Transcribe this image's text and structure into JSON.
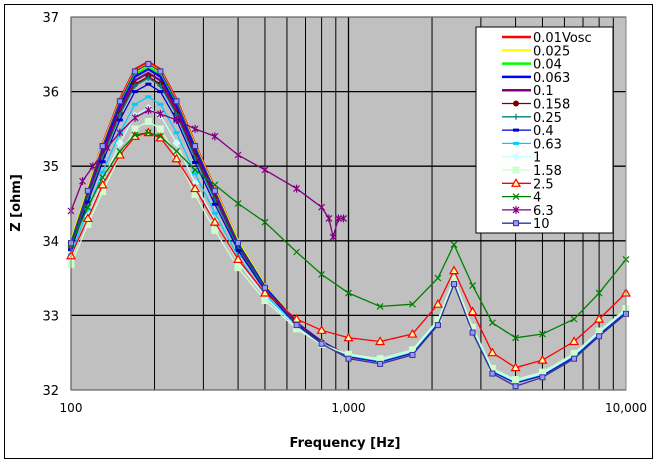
{
  "chart_data": {
    "type": "line",
    "title": "",
    "xlabel": "Frequency [Hz]",
    "ylabel": "Z [ohm]",
    "xscale": "log",
    "xlim": [
      100,
      10000
    ],
    "ylim": [
      32,
      37
    ],
    "grid": true,
    "legend_position": "top-right",
    "x_ticks": [
      {
        "v": 100,
        "label": "100"
      },
      {
        "v": 1000,
        "label": "1,000"
      },
      {
        "v": 10000,
        "label": "10,000"
      }
    ],
    "y_ticks": [
      {
        "v": 32,
        "label": "32"
      },
      {
        "v": 33,
        "label": "33"
      },
      {
        "v": 34,
        "label": "34"
      },
      {
        "v": 35,
        "label": "35"
      },
      {
        "v": 36,
        "label": "36"
      },
      {
        "v": 37,
        "label": "37"
      }
    ],
    "x": [
      100,
      115,
      130,
      150,
      170,
      190,
      210,
      240,
      280,
      330,
      400,
      500,
      650,
      800,
      1000,
      1300,
      1700,
      2100,
      2400,
      2800,
      3300,
      4000,
      5000,
      6500,
      8000,
      10000
    ],
    "series": [
      {
        "name": "0.01Vosc",
        "color": "#FF0000",
        "marker": "none",
        "values": [
          34.0,
          34.7,
          35.3,
          35.9,
          36.3,
          36.4,
          36.3,
          35.9,
          35.3,
          34.7,
          34.0,
          33.4,
          32.9,
          32.65,
          32.45,
          32.38,
          32.5,
          32.9,
          33.45,
          32.8,
          32.25,
          32.1,
          32.2,
          32.45,
          32.75,
          33.05
        ]
      },
      {
        "name": "0.025",
        "color": "#FFFF00",
        "marker": "none",
        "values": [
          34.0,
          34.7,
          35.28,
          35.87,
          36.27,
          36.37,
          36.27,
          35.87,
          35.28,
          34.68,
          34.0,
          33.4,
          32.9,
          32.65,
          32.45,
          32.38,
          32.5,
          32.9,
          33.45,
          32.8,
          32.25,
          32.1,
          32.2,
          32.45,
          32.75,
          33.05
        ]
      },
      {
        "name": "0.04",
        "color": "#00FF00",
        "marker": "none",
        "values": [
          33.97,
          34.66,
          35.24,
          35.83,
          36.23,
          36.33,
          36.23,
          35.83,
          35.24,
          34.65,
          33.97,
          33.38,
          32.9,
          32.65,
          32.45,
          32.38,
          32.5,
          32.9,
          33.45,
          32.8,
          32.25,
          32.1,
          32.2,
          32.45,
          32.75,
          33.05
        ]
      },
      {
        "name": "0.063",
        "color": "#0000FF",
        "marker": "none",
        "values": [
          33.96,
          34.64,
          35.22,
          35.8,
          36.2,
          36.3,
          36.2,
          35.8,
          35.22,
          34.63,
          33.96,
          33.38,
          32.9,
          32.65,
          32.45,
          32.38,
          32.5,
          32.9,
          33.45,
          32.8,
          32.25,
          32.1,
          32.2,
          32.45,
          32.75,
          33.05
        ]
      },
      {
        "name": "0.1",
        "color": "#800080",
        "marker": "none",
        "values": [
          33.94,
          34.61,
          35.18,
          35.76,
          36.15,
          36.25,
          36.15,
          35.76,
          35.17,
          34.6,
          33.93,
          33.36,
          32.89,
          32.65,
          32.45,
          32.38,
          32.5,
          32.9,
          33.45,
          32.8,
          32.25,
          32.1,
          32.2,
          32.45,
          32.75,
          33.05
        ]
      },
      {
        "name": "0.158",
        "color": "#800000",
        "marker": "circle",
        "values": [
          33.92,
          34.58,
          35.14,
          35.71,
          36.1,
          36.2,
          36.1,
          35.71,
          35.13,
          34.56,
          33.91,
          33.35,
          32.88,
          32.64,
          32.45,
          32.38,
          32.5,
          32.9,
          33.45,
          32.8,
          32.25,
          32.1,
          32.2,
          32.45,
          32.75,
          33.05
        ]
      },
      {
        "name": "0.25",
        "color": "#008080",
        "marker": "plus",
        "values": [
          33.91,
          34.57,
          35.12,
          35.69,
          36.08,
          36.18,
          36.08,
          35.69,
          35.11,
          34.55,
          33.9,
          33.35,
          32.88,
          32.64,
          32.45,
          32.38,
          32.5,
          32.9,
          33.45,
          32.8,
          32.25,
          32.1,
          32.2,
          32.45,
          32.75,
          33.05
        ]
      },
      {
        "name": "0.4",
        "color": "#0000CC",
        "marker": "dash",
        "values": [
          33.88,
          34.52,
          35.06,
          35.62,
          36.0,
          36.1,
          36.0,
          35.62,
          35.05,
          34.49,
          33.87,
          33.33,
          32.87,
          32.64,
          32.45,
          32.38,
          32.5,
          32.9,
          33.45,
          32.8,
          32.25,
          32.1,
          32.2,
          32.45,
          32.75,
          33.05
        ]
      },
      {
        "name": "0.63",
        "color": "#00CCFF",
        "marker": "dash",
        "values": [
          33.81,
          34.42,
          34.92,
          35.45,
          35.83,
          35.93,
          35.83,
          35.45,
          34.9,
          34.37,
          33.79,
          33.28,
          32.85,
          32.63,
          32.46,
          32.39,
          32.51,
          32.91,
          33.46,
          32.81,
          32.26,
          32.11,
          32.21,
          32.46,
          32.76,
          33.06
        ]
      },
      {
        "name": "1",
        "color": "#CCFFFF",
        "marker": "diamond",
        "values": [
          33.75,
          34.33,
          34.8,
          35.31,
          35.68,
          35.78,
          35.68,
          35.31,
          34.77,
          34.27,
          33.72,
          33.25,
          32.84,
          32.62,
          32.47,
          32.4,
          32.52,
          32.92,
          33.47,
          32.82,
          32.27,
          32.12,
          32.22,
          32.47,
          32.77,
          33.07
        ]
      },
      {
        "name": "1.58",
        "color": "#CCFFCC",
        "marker": "square",
        "values": [
          33.68,
          34.22,
          34.66,
          35.14,
          35.5,
          35.6,
          35.5,
          35.14,
          34.62,
          34.14,
          33.64,
          33.2,
          32.82,
          32.61,
          32.48,
          32.42,
          32.54,
          32.94,
          33.49,
          32.84,
          32.29,
          32.14,
          32.24,
          32.49,
          32.79,
          33.09
        ]
      },
      {
        "name": "2.5",
        "color": "#FF0000",
        "marker": "triangle",
        "values": [
          33.8,
          34.3,
          34.75,
          35.15,
          35.4,
          35.45,
          35.38,
          35.1,
          34.7,
          34.25,
          33.75,
          33.3,
          32.95,
          32.8,
          32.7,
          32.65,
          32.75,
          33.15,
          33.6,
          33.05,
          32.5,
          32.3,
          32.4,
          32.65,
          32.95,
          33.3
        ]
      },
      {
        "name": "4",
        "color": "#008000",
        "marker": "x",
        "values": [
          33.95,
          34.45,
          34.85,
          35.2,
          35.42,
          35.45,
          35.4,
          35.2,
          34.95,
          34.75,
          34.5,
          34.25,
          33.85,
          33.55,
          33.3,
          33.12,
          33.15,
          33.5,
          33.95,
          33.4,
          32.9,
          32.7,
          32.75,
          32.95,
          33.3,
          33.75
        ]
      },
      {
        "name": "6.3",
        "color": "#800080",
        "marker": "star",
        "x": [
          100,
          110,
          120,
          135,
          150,
          170,
          190,
          210,
          240,
          280,
          330,
          400,
          500,
          650,
          800,
          850,
          880,
          920,
          960
        ],
        "values": [
          34.4,
          34.8,
          35.0,
          35.25,
          35.45,
          35.65,
          35.75,
          35.7,
          35.62,
          35.5,
          35.4,
          35.15,
          34.95,
          34.7,
          34.45,
          34.3,
          34.05,
          34.3,
          34.3
        ]
      },
      {
        "name": "10",
        "color": "#333399",
        "marker": "square-purple",
        "values": [
          33.97,
          34.67,
          35.27,
          35.87,
          36.27,
          36.37,
          36.27,
          35.87,
          35.27,
          34.67,
          33.97,
          33.37,
          32.87,
          32.62,
          32.42,
          32.35,
          32.47,
          32.87,
          33.42,
          32.77,
          32.22,
          32.05,
          32.17,
          32.42,
          32.72,
          33.02
        ]
      }
    ]
  }
}
